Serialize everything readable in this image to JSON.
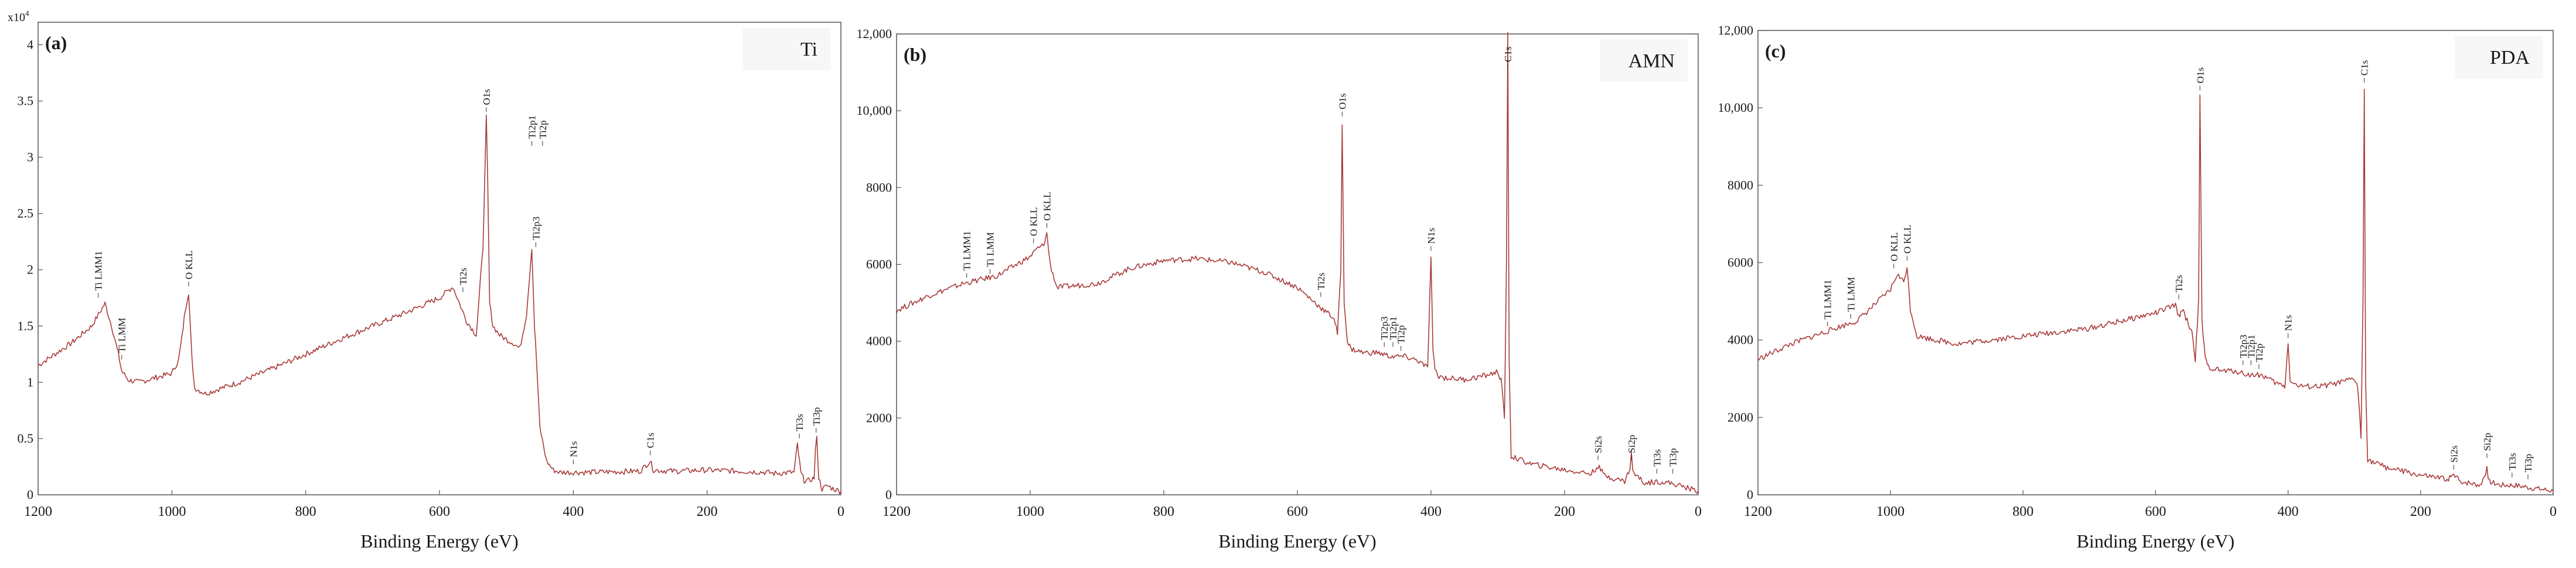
{
  "chart_data": [
    {
      "type": "line",
      "panel": "(a)",
      "sample": "Ti",
      "xlabel": "Binding Energy (eV)",
      "ylabel": "",
      "xlim": [
        1200,
        0
      ],
      "ylim": [
        0,
        4.2
      ],
      "x_ticks": [
        1200,
        1000,
        800,
        600,
        400,
        200,
        0
      ],
      "y_ticks": [
        {
          "v": 0,
          "t": "0"
        },
        {
          "v": 0.5,
          "t": "0.5"
        },
        {
          "v": 1,
          "t": "1"
        },
        {
          "v": 1.5,
          "t": "1.5"
        },
        {
          "v": 2,
          "t": "2"
        },
        {
          "v": 2.5,
          "t": "2.5"
        },
        {
          "v": 3,
          "t": "3"
        },
        {
          "v": 3.5,
          "t": "3.5"
        },
        {
          "v": 4,
          "t": "4"
        }
      ],
      "y_multiplier": {
        "base": "x10",
        "exp": "4"
      },
      "line_color": "#a83a3a",
      "series": [
        {
          "name": "Ti",
          "x": [
            1200,
            1150,
            1120,
            1110,
            1100,
            1090,
            1080,
            1075,
            1065,
            1050,
            1000,
            990,
            985,
            980,
            975,
            970,
            966,
            950,
            900,
            850,
            800,
            750,
            700,
            650,
            600,
            580,
            570,
            560,
            545,
            535,
            530,
            528,
            525,
            520,
            510,
            500,
            490,
            480,
            470,
            462,
            458,
            455,
            450,
            440,
            430,
            420,
            400,
            380,
            300,
            285,
            280,
            250,
            200,
            150,
            110,
            100,
            70,
            65,
            60,
            55,
            50,
            40,
            38,
            36,
            33,
            28,
            20,
            10,
            0
          ],
          "y": [
            1.15,
            1.35,
            1.5,
            1.6,
            1.7,
            1.5,
            1.25,
            1.1,
            1.02,
            1.0,
            1.08,
            1.2,
            1.4,
            1.65,
            1.8,
            1.2,
            0.95,
            0.9,
            1.0,
            1.12,
            1.25,
            1.38,
            1.5,
            1.62,
            1.75,
            1.85,
            1.7,
            1.55,
            1.42,
            2.2,
            3.35,
            2.8,
            1.7,
            1.5,
            1.42,
            1.38,
            1.35,
            1.3,
            1.6,
            2.2,
            1.5,
            1.2,
            0.6,
            0.3,
            0.22,
            0.2,
            0.2,
            0.2,
            0.21,
            0.3,
            0.22,
            0.21,
            0.22,
            0.21,
            0.2,
            0.19,
            0.2,
            0.45,
            0.2,
            0.13,
            0.12,
            0.15,
            0.4,
            0.5,
            0.15,
            0.05,
            0.08,
            0.05,
            0.03
          ]
        }
      ],
      "annotations": [
        {
          "label": "Ti LMM1",
          "x": 1110,
          "y": 1.7
        },
        {
          "label": "Ti LMM",
          "x": 1075,
          "y": 1.15
        },
        {
          "label": "O KLL",
          "x": 975,
          "y": 1.8
        },
        {
          "label": "Ti2s",
          "x": 565,
          "y": 1.75
        },
        {
          "label": "O1s",
          "x": 530,
          "y": 3.35
        },
        {
          "label": "Ti2p1",
          "x": 462,
          "y": 3.05
        },
        {
          "label": "Ti2p3",
          "x": 456,
          "y": 2.15
        },
        {
          "label": "Ti2p",
          "x": 446,
          "y": 3.05
        },
        {
          "label": "N1s",
          "x": 400,
          "y": 0.22
        },
        {
          "label": "C1s",
          "x": 285,
          "y": 0.3
        },
        {
          "label": "Ti3s",
          "x": 62,
          "y": 0.45
        },
        {
          "label": "Ti3p",
          "x": 37,
          "y": 0.5
        }
      ]
    },
    {
      "type": "line",
      "panel": "(b)",
      "sample": "AMN",
      "xlabel": "Binding Energy (eV)",
      "ylabel": "",
      "xlim": [
        1200,
        0
      ],
      "ylim": [
        0,
        12000
      ],
      "x_ticks": [
        1200,
        1000,
        800,
        600,
        400,
        200,
        0
      ],
      "y_ticks": [
        {
          "v": 0,
          "t": "0"
        },
        {
          "v": 2000,
          "t": "2000"
        },
        {
          "v": 4000,
          "t": "4000"
        },
        {
          "v": 6000,
          "t": "6000"
        },
        {
          "v": 8000,
          "t": "8000"
        },
        {
          "v": 10000,
          "t": "10,000"
        },
        {
          "v": 12000,
          "t": "12,000"
        }
      ],
      "line_color": "#a83a3a",
      "series": [
        {
          "name": "AMN",
          "x": [
            1200,
            1150,
            1100,
            1050,
            1000,
            990,
            980,
            975,
            970,
            960,
            900,
            850,
            800,
            750,
            700,
            650,
            600,
            560,
            545,
            540,
            535,
            533,
            530,
            525,
            520,
            500,
            480,
            460,
            440,
            420,
            405,
            400,
            397,
            394,
            390,
            380,
            350,
            320,
            300,
            295,
            290,
            287,
            285,
            283,
            280,
            250,
            200,
            160,
            150,
            140,
            110,
            102,
            100,
            98,
            80,
            60,
            40,
            20,
            0
          ],
          "y": [
            4800,
            5200,
            5500,
            5700,
            6200,
            6400,
            6500,
            6800,
            6000,
            5400,
            5500,
            5900,
            6100,
            6150,
            6050,
            5800,
            5400,
            4800,
            4600,
            4200,
            5800,
            9700,
            5000,
            4000,
            3800,
            3700,
            3700,
            3600,
            3600,
            3500,
            3300,
            6200,
            3700,
            3300,
            3100,
            3050,
            3000,
            3100,
            3200,
            3000,
            2000,
            6000,
            12000,
            3500,
            1000,
            800,
            650,
            550,
            750,
            500,
            350,
            700,
            1100,
            600,
            300,
            350,
            300,
            200,
            100
          ]
        }
      ],
      "annotations": [
        {
          "label": "Ti LMM1",
          "x": 1095,
          "y": 5500
        },
        {
          "label": "Ti LMM",
          "x": 1060,
          "y": 5600
        },
        {
          "label": "O KLL",
          "x": 995,
          "y": 6400
        },
        {
          "label": "O KLL",
          "x": 975,
          "y": 6800
        },
        {
          "label": "O1s",
          "x": 533,
          "y": 9700
        },
        {
          "label": "Ti2s",
          "x": 565,
          "y": 5000
        },
        {
          "label": "Ti2p3",
          "x": 470,
          "y": 3700
        },
        {
          "label": "Ti2p1",
          "x": 457,
          "y": 3700
        },
        {
          "label": "Ti2p",
          "x": 445,
          "y": 3600
        },
        {
          "label": "N1s",
          "x": 400,
          "y": 6200
        },
        {
          "label": "C1s",
          "x": 285,
          "y": 12000
        },
        {
          "label": "Si2s",
          "x": 150,
          "y": 750
        },
        {
          "label": "Si2p",
          "x": 100,
          "y": 750
        },
        {
          "label": "Ti3s",
          "x": 62,
          "y": 400
        },
        {
          "label": "Ti3p",
          "x": 38,
          "y": 400
        }
      ]
    },
    {
      "type": "line",
      "panel": "(c)",
      "sample": "PDA",
      "xlabel": "Binding Energy (eV)",
      "ylabel": "",
      "xlim": [
        1200,
        0
      ],
      "ylim": [
        0,
        12000
      ],
      "x_ticks": [
        1200,
        1000,
        800,
        600,
        400,
        200,
        0
      ],
      "y_ticks": [
        {
          "v": 0,
          "t": "0"
        },
        {
          "v": 2000,
          "t": "2000"
        },
        {
          "v": 4000,
          "t": "4000"
        },
        {
          "v": 6000,
          "t": "6000"
        },
        {
          "v": 8000,
          "t": "8000"
        },
        {
          "v": 10000,
          "t": "10,000"
        },
        {
          "v": 12000,
          "t": "12,000"
        }
      ],
      "line_color": "#a83a3a",
      "series": [
        {
          "name": "PDA",
          "x": [
            1200,
            1150,
            1100,
            1050,
            1000,
            990,
            980,
            975,
            970,
            960,
            900,
            850,
            800,
            750,
            700,
            650,
            600,
            570,
            565,
            560,
            545,
            540,
            535,
            533,
            530,
            525,
            520,
            500,
            480,
            460,
            440,
            420,
            405,
            400,
            397,
            394,
            390,
            380,
            350,
            320,
            300,
            295,
            290,
            287,
            285,
            283,
            280,
            250,
            200,
            160,
            150,
            140,
            110,
            102,
            100,
            98,
            80,
            60,
            40,
            20,
            0
          ],
          "y": [
            3500,
            3900,
            4200,
            4500,
            5300,
            5700,
            5500,
            5900,
            4800,
            4100,
            3900,
            4000,
            4100,
            4200,
            4300,
            4500,
            4700,
            4900,
            4600,
            4800,
            4200,
            3500,
            5000,
            10300,
            4500,
            3500,
            3300,
            3200,
            3200,
            3100,
            3100,
            2900,
            2800,
            3900,
            3000,
            2900,
            2850,
            2800,
            2800,
            2900,
            3000,
            2800,
            1500,
            5000,
            10500,
            3000,
            900,
            700,
            500,
            400,
            500,
            350,
            250,
            550,
            800,
            350,
            250,
            250,
            200,
            150,
            100
          ]
        }
      ],
      "annotations": [
        {
          "label": "Ti LMM1",
          "x": 1095,
          "y": 4200
        },
        {
          "label": "Ti LMM",
          "x": 1060,
          "y": 4400
        },
        {
          "label": "O KLL",
          "x": 995,
          "y": 5700
        },
        {
          "label": "O KLL",
          "x": 975,
          "y": 5900
        },
        {
          "label": "Ti2s",
          "x": 565,
          "y": 4900
        },
        {
          "label": "O1s",
          "x": 533,
          "y": 10300
        },
        {
          "label": "Ti2p3",
          "x": 468,
          "y": 3200
        },
        {
          "label": "Ti2p1",
          "x": 456,
          "y": 3200
        },
        {
          "label": "Ti2p",
          "x": 444,
          "y": 3100
        },
        {
          "label": "N1s",
          "x": 400,
          "y": 3900
        },
        {
          "label": "C1s",
          "x": 285,
          "y": 10500
        },
        {
          "label": "Si2s",
          "x": 150,
          "y": 500
        },
        {
          "label": "Si2p",
          "x": 100,
          "y": 800
        },
        {
          "label": "Ti3s",
          "x": 62,
          "y": 300
        },
        {
          "label": "Ti3p",
          "x": 38,
          "y": 250
        }
      ]
    }
  ]
}
